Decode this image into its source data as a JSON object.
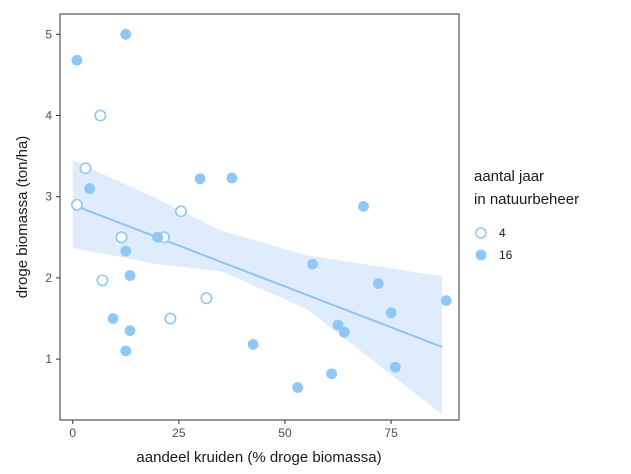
{
  "chart_data": {
    "type": "scatter",
    "xlabel": "aandeel kruiden (% droge biomassa)",
    "ylabel": "droge biomassa (ton/ha)",
    "xlim": [
      -3,
      91
    ],
    "ylim": [
      0.25,
      5.25
    ],
    "x_ticks": [
      0,
      25,
      50,
      75
    ],
    "y_ticks": [
      1,
      2,
      3,
      4,
      5
    ],
    "grid": false,
    "legend_placement": "right",
    "legend_title_lines": [
      "aantal jaar",
      "in natuurbeheer"
    ],
    "colors": {
      "series": "#90c8f5",
      "band": "#dbeafb",
      "line": "#8ec5f2",
      "frame": "#333333"
    },
    "series": [
      {
        "name": "4",
        "marker": "open-circle",
        "points": [
          [
            1,
            2.9
          ],
          [
            3,
            3.35
          ],
          [
            6.5,
            4.0
          ],
          [
            7,
            1.97
          ],
          [
            11.5,
            2.5
          ],
          [
            21.5,
            2.5
          ],
          [
            23,
            1.5
          ],
          [
            25.5,
            2.82
          ],
          [
            31.5,
            1.75
          ]
        ]
      },
      {
        "name": "16",
        "marker": "filled-circle",
        "points": [
          [
            1,
            4.68
          ],
          [
            12.5,
            5.0
          ],
          [
            4,
            3.1
          ],
          [
            9.5,
            1.5
          ],
          [
            12.5,
            2.33
          ],
          [
            13.5,
            2.03
          ],
          [
            13.5,
            1.35
          ],
          [
            12.5,
            1.1
          ],
          [
            20,
            2.5
          ],
          [
            30,
            3.22
          ],
          [
            37.5,
            3.23
          ],
          [
            42.5,
            1.18
          ],
          [
            53,
            0.65
          ],
          [
            56.5,
            2.17
          ],
          [
            61,
            0.82
          ],
          [
            62.5,
            1.42
          ],
          [
            64,
            1.33
          ],
          [
            68.5,
            2.88
          ],
          [
            72,
            1.93
          ],
          [
            75,
            1.57
          ],
          [
            76,
            0.9
          ],
          [
            88,
            1.72
          ]
        ]
      }
    ],
    "trend": {
      "type": "linear",
      "line": [
        [
          0,
          2.9
        ],
        [
          87,
          1.15
        ]
      ],
      "band_upper": [
        [
          0,
          3.45
        ],
        [
          20,
          2.97
        ],
        [
          35,
          2.58
        ],
        [
          55,
          2.28
        ],
        [
          87,
          2.02
        ]
      ],
      "band_lower": [
        [
          0,
          2.37
        ],
        [
          20,
          2.17
        ],
        [
          35,
          2.08
        ],
        [
          55,
          1.62
        ],
        [
          87,
          0.32
        ]
      ]
    }
  }
}
